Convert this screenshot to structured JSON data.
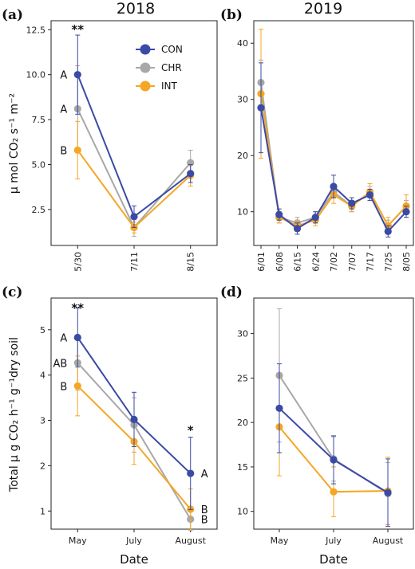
{
  "colors": {
    "CON": "#3b4aa6",
    "CHR": "#a8a8a8",
    "INT": "#f5a623"
  },
  "shared": {
    "xlabel": "Date",
    "ylabel_top": "μ mol CO₂ s⁻¹ m⁻²",
    "ylabel_bottom": "Total μ g CO₂ h⁻¹ g⁻¹dry soil"
  },
  "chart_data": [
    {
      "panel": "(a)",
      "title": "2018",
      "type": "line",
      "categories": [
        "5/30",
        "7/11",
        "8/15"
      ],
      "ylim": [
        0.5,
        13
      ],
      "yticks": [
        2.5,
        5.0,
        7.5,
        10.0,
        12.5
      ],
      "ytick_labels": [
        "2.5",
        "5.0",
        "7.5",
        "10.0",
        "12.5"
      ],
      "legend": [
        "CON",
        "CHR",
        "INT"
      ],
      "legend_position": "top-right",
      "series": [
        {
          "name": "CON",
          "values": [
            10.0,
            2.1,
            4.5
          ],
          "err": [
            2.2,
            0.6,
            0.5
          ]
        },
        {
          "name": "CHR",
          "values": [
            8.1,
            1.5,
            5.1
          ],
          "err": [
            2.4,
            0.5,
            0.7
          ]
        },
        {
          "name": "INT",
          "values": [
            5.8,
            1.5,
            4.4
          ],
          "err": [
            1.6,
            0.3,
            0.6
          ]
        }
      ],
      "annotations": [
        {
          "text": "**",
          "category": 0,
          "y": 12.7
        },
        {
          "text": "A",
          "category": 0,
          "series": "CON"
        },
        {
          "text": "A",
          "category": 0,
          "series": "CHR"
        },
        {
          "text": "B",
          "category": 0,
          "series": "INT"
        }
      ]
    },
    {
      "panel": "(b)",
      "title": "2019",
      "type": "line",
      "categories": [
        "6/01",
        "6/08",
        "6/15",
        "6/24",
        "7/02",
        "7/07",
        "7/17",
        "7/25",
        "8/05"
      ],
      "ylim": [
        4,
        44
      ],
      "yticks": [
        10,
        20,
        30,
        40
      ],
      "ytick_labels": [
        "10",
        "20",
        "30",
        "40"
      ],
      "series": [
        {
          "name": "CON",
          "values": [
            28.5,
            9.5,
            7.0,
            9.0,
            14.5,
            11.5,
            13.0,
            6.5,
            10.0
          ],
          "err": [
            8.0,
            1.0,
            1.0,
            1.0,
            2.0,
            1.0,
            1.0,
            1.0,
            1.0
          ]
        },
        {
          "name": "CHR",
          "values": [
            33.0,
            9.0,
            8.0,
            9.0,
            13.5,
            11.0,
            13.5,
            7.5,
            11.0
          ],
          "err": [
            4.0,
            1.0,
            1.0,
            1.0,
            1.0,
            1.0,
            1.0,
            1.0,
            1.0
          ]
        },
        {
          "name": "INT",
          "values": [
            31.0,
            9.0,
            7.5,
            8.5,
            13.0,
            11.0,
            13.5,
            7.5,
            11.0
          ],
          "err": [
            11.5,
            1.0,
            1.0,
            1.0,
            1.5,
            1.0,
            1.5,
            1.5,
            2.0
          ]
        }
      ],
      "annotations": []
    },
    {
      "panel": "(c)",
      "type": "line",
      "categories": [
        "May",
        "July",
        "August"
      ],
      "ylim": [
        0.6,
        5.7
      ],
      "yticks": [
        1,
        2,
        3,
        4,
        5
      ],
      "ytick_labels": [
        "1",
        "2",
        "3",
        "4",
        "5"
      ],
      "series": [
        {
          "name": "CON",
          "values": [
            4.83,
            3.02,
            1.83
          ],
          "err": [
            0.65,
            0.6,
            0.8
          ]
        },
        {
          "name": "CHR",
          "values": [
            4.27,
            2.9,
            0.82
          ],
          "err": [
            0.6,
            0.6,
            0.25
          ]
        },
        {
          "name": "INT",
          "values": [
            3.76,
            2.53,
            1.04
          ],
          "err": [
            0.66,
            0.5,
            0.45
          ]
        }
      ],
      "annotations": [
        {
          "text": "**",
          "category": 0,
          "y": 5.55
        },
        {
          "text": "A",
          "category": 0,
          "series": "CON"
        },
        {
          "text": "AB",
          "category": 0,
          "series": "CHR"
        },
        {
          "text": "B",
          "category": 0,
          "series": "INT"
        },
        {
          "text": "*",
          "category": 2,
          "y": 2.85
        },
        {
          "text": "A",
          "category": 2,
          "series": "CON"
        },
        {
          "text": "B",
          "category": 2,
          "series": "INT"
        },
        {
          "text": "B",
          "category": 2,
          "series": "CHR"
        }
      ]
    },
    {
      "panel": "(d)",
      "type": "line",
      "categories": [
        "May",
        "July",
        "August"
      ],
      "ylim": [
        8,
        34
      ],
      "yticks": [
        10,
        15,
        20,
        25,
        30
      ],
      "ytick_labels": [
        "10",
        "15",
        "20",
        "25",
        "30"
      ],
      "series": [
        {
          "name": "CON",
          "values": [
            21.6,
            15.8,
            12.1
          ],
          "err": [
            5.0,
            2.7,
            3.8
          ]
        },
        {
          "name": "CHR",
          "values": [
            25.3,
            15.9,
            12.0
          ],
          "err": [
            7.5,
            2.5,
            3.5
          ]
        },
        {
          "name": "INT",
          "values": [
            19.5,
            12.2,
            12.3
          ],
          "err": [
            5.5,
            2.8,
            3.8
          ]
        }
      ],
      "annotations": []
    }
  ]
}
